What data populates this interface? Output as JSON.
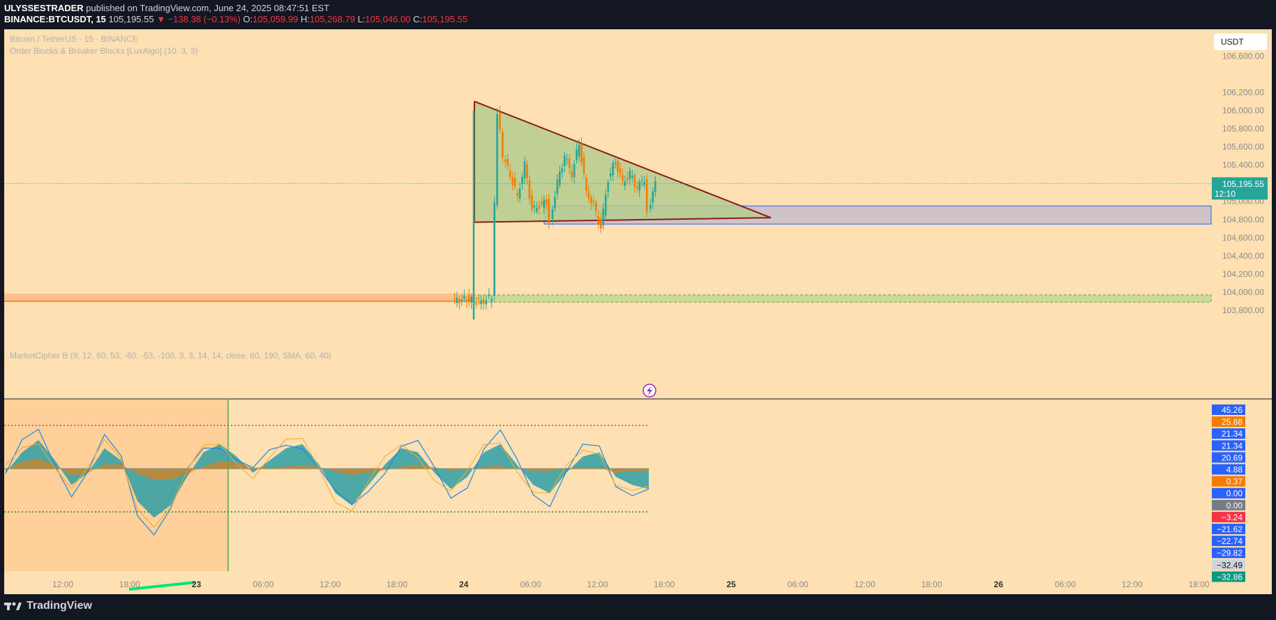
{
  "header": {
    "publisher": "ULYSSESTRADER",
    "published_text": "published on TradingView.com, June 24, 2025 08:47:51 EST",
    "symbol_line": "BINANCE:BTCUSDT, 15",
    "price": "105,195.55",
    "change": "▼ −138.38 (−0.13%)",
    "o_label": "O:",
    "o": "105,059.99",
    "h_label": "H:",
    "h": "105,268.79",
    "l_label": "L:",
    "l": "105,046.00",
    "c_label": "C:",
    "c": "105,195.55"
  },
  "legend": {
    "title": "Bitcoin / TetherUS · 15 · BINANCE",
    "indicator": "Order Blocks & Breaker Blocks [LuxAlgo] (10, 3, 3)",
    "oscillator": "MarketCipher B (9, 12, 60, 53, -60, -53, -100, 3, 3, 14, 14, close, 60, 190, SMA, 60, 40)"
  },
  "currency_button": "USDT",
  "footer": {
    "brand": "TradingView"
  },
  "colors": {
    "bg": "#ffe0b2",
    "up": "#26a69a",
    "down": "#ef5350",
    "triangle": "#8b1a1a",
    "triangle_fill": "#b5cc8e",
    "zone_fill": "#cfc2c8",
    "zone_line": "#2962ff",
    "osc_wave": "#2e9fa6",
    "osc_mf": "#f57c00"
  },
  "chart_data": {
    "type": "line",
    "price_axis": {
      "ticks": [
        "106,600.00",
        "106,200.00",
        "106,000.00",
        "105,800.00",
        "105,600.00",
        "105,400.00",
        "105,000.00",
        "104,800.00",
        "104,600.00",
        "104,400.00",
        "104,200.00",
        "104,000.00",
        "103,800.00"
      ],
      "range": [
        103700,
        106870
      ]
    },
    "time_axis": [
      "12:00",
      "18:00",
      "23",
      "06:00",
      "12:00",
      "18:00",
      "24",
      "06:00",
      "12:00",
      "18:00",
      "25",
      "06:00",
      "12:00",
      "18:00",
      "26",
      "06:00",
      "12:00",
      "18:00"
    ],
    "last_price": {
      "value": "105,195.55",
      "countdown": "12:10"
    },
    "price_path": [
      [
        0,
        103900
      ],
      [
        8,
        103930
      ],
      [
        16,
        103890
      ],
      [
        22,
        103950
      ],
      [
        25,
        106000
      ],
      [
        28,
        105500
      ],
      [
        32,
        105300
      ],
      [
        36,
        105050
      ],
      [
        40,
        105400
      ],
      [
        44,
        104900
      ],
      [
        48,
        104950
      ],
      [
        52,
        105000
      ],
      [
        54,
        104800
      ],
      [
        58,
        105200
      ],
      [
        62,
        105500
      ],
      [
        66,
        105300
      ],
      [
        70,
        105650
      ],
      [
        74,
        105100
      ],
      [
        78,
        104950
      ],
      [
        82,
        104700
      ],
      [
        86,
        105250
      ],
      [
        90,
        105450
      ],
      [
        94,
        105200
      ],
      [
        98,
        105300
      ],
      [
        102,
        105150
      ],
      [
        106,
        105250
      ],
      [
        108,
        104900
      ],
      [
        112,
        105195.55
      ]
    ],
    "triangle": {
      "apex_high": 106100,
      "base_low": 104770,
      "right_low": 104820
    },
    "zones": {
      "resistance_zone": [
        104750,
        104950
      ],
      "support_zone": [
        103890,
        103970
      ],
      "old_zone": [
        103900,
        103985
      ]
    },
    "oscillator": {
      "value_labels": [
        "45.26",
        "25.88",
        "21.34",
        "21.34",
        "20.69",
        "4.88",
        "0.37",
        "0.00",
        "0.00",
        "−3.24",
        "−21.62",
        "−22.74",
        "−29.82",
        "−32.49",
        "−32.86"
      ],
      "label_colors": [
        "#2962ff",
        "#f57c00",
        "#2962ff",
        "#2962ff",
        "#2962ff",
        "#2962ff",
        "#f57c00",
        "#2962ff",
        "#787b86",
        "#f23645",
        "#2962ff",
        "#2962ff",
        "#2962ff",
        "#d1d4dc",
        "#089981"
      ],
      "overbought": 53,
      "oversold": -53,
      "wave": [
        -5,
        20,
        35,
        10,
        -20,
        -5,
        25,
        10,
        -40,
        -60,
        -45,
        -10,
        20,
        30,
        15,
        -5,
        10,
        25,
        30,
        5,
        -30,
        -45,
        -20,
        5,
        25,
        20,
        -5,
        -25,
        -10,
        20,
        30,
        5,
        -20,
        -30,
        -5,
        15,
        20,
        -10,
        -20,
        -25
      ]
    }
  }
}
